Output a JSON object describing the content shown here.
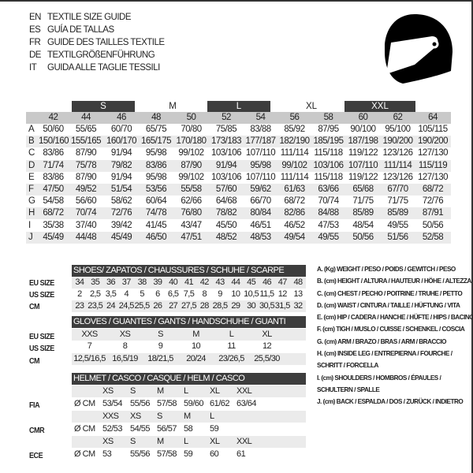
{
  "titles": [
    {
      "code": "EN",
      "text": "TEXTILE SIZE GUIDE"
    },
    {
      "code": "ES",
      "text": "GUÍA DE TALLAS"
    },
    {
      "code": "FR",
      "text": "GUIDE DES TAILLES TEXTILE"
    },
    {
      "code": "DE",
      "text": "TEXTILGRÖßENFÜHRUNG"
    },
    {
      "code": "IT",
      "text": "GUIDA ALLE TAGLIE TESSILI"
    }
  ],
  "textile": {
    "groups": [
      "S",
      "M",
      "L",
      "XL",
      "XXL"
    ],
    "sizes": [
      "42",
      "44",
      "46",
      "48",
      "50",
      "52",
      "54",
      "56",
      "58",
      "60",
      "62",
      "64"
    ],
    "rows": [
      {
        "letter": "A",
        "values": [
          "50/60",
          "55/65",
          "60/70",
          "65/75",
          "70/80",
          "75/85",
          "83/88",
          "85/92",
          "87/95",
          "90/100",
          "95/100",
          "105/115"
        ]
      },
      {
        "letter": "B",
        "values": [
          "150/160",
          "155/165",
          "160/170",
          "165/175",
          "170/180",
          "173/183",
          "177/187",
          "182/190",
          "185/195",
          "187/198",
          "190/200",
          "190/200"
        ]
      },
      {
        "letter": "C",
        "values": [
          "83/86",
          "87/90",
          "91/94",
          "95/98",
          "99/102",
          "103/106",
          "107/110",
          "111/114",
          "115/118",
          "119/122",
          "123/126",
          "127/130"
        ]
      },
      {
        "letter": "D",
        "values": [
          "71/74",
          "75/78",
          "79/82",
          "83/86",
          "87/90",
          "91/94",
          "95/98",
          "99/102",
          "103/106",
          "107/110",
          "111/114",
          "115/119"
        ]
      },
      {
        "letter": "E",
        "values": [
          "83/86",
          "87/90",
          "91/94",
          "95/98",
          "99/102",
          "103/106",
          "107/110",
          "111/114",
          "115/118",
          "119/122",
          "123/126",
          "127/130"
        ]
      },
      {
        "letter": "F",
        "values": [
          "47/50",
          "49/52",
          "51/54",
          "53/56",
          "55/58",
          "57/60",
          "59/62",
          "61/63",
          "63/66",
          "65/68",
          "67/70",
          "68/72"
        ]
      },
      {
        "letter": "G",
        "values": [
          "54/58",
          "56/60",
          "58/62",
          "60/64",
          "62/66",
          "64/68",
          "66/70",
          "68/72",
          "70/74",
          "71/75",
          "71/75",
          "72/76"
        ]
      },
      {
        "letter": "H",
        "values": [
          "68/72",
          "70/74",
          "72/76",
          "74/78",
          "76/80",
          "78/82",
          "80/84",
          "82/86",
          "84/88",
          "85/89",
          "85/89",
          "87/91"
        ]
      },
      {
        "letter": "I",
        "values": [
          "35/38",
          "37/40",
          "39/42",
          "41/45",
          "43/47",
          "45/50",
          "46/51",
          "46/52",
          "47/53",
          "48/54",
          "49/55",
          "50/56"
        ]
      },
      {
        "letter": "J",
        "values": [
          "45/49",
          "44/48",
          "45/49",
          "46/50",
          "47/51",
          "48/52",
          "48/53",
          "49/54",
          "49/55",
          "50/56",
          "51/56",
          "52/58"
        ]
      }
    ]
  },
  "shoes": {
    "title": "SHOES/ ZAPATOS / CHAUSSURES / SCHUHE / SCARPE",
    "rows": [
      {
        "label": "EU SIZE",
        "values": [
          "34",
          "35",
          "36",
          "37",
          "38",
          "39",
          "40",
          "41",
          "42",
          "43",
          "44",
          "45",
          "46",
          "47",
          "48"
        ]
      },
      {
        "label": "US SIZE",
        "values": [
          "2",
          "2,5",
          "3,5",
          "4",
          "5",
          "6",
          "6,5",
          "7,5",
          "8",
          "9",
          "10",
          "10,5",
          "11,5",
          "12",
          "13"
        ]
      },
      {
        "label": "CM",
        "values": [
          "23",
          "23,5",
          "24",
          "24,5",
          "25,5",
          "26",
          "27",
          "27,5",
          "28",
          "28,5",
          "29",
          "30",
          "30,5",
          "31,5",
          "32"
        ]
      }
    ]
  },
  "gloves": {
    "title": "GLOVES / GUANTES / GANTS / HANDSCHUHE / GUANTI",
    "rows": [
      {
        "label": "EU SIZE",
        "values": [
          "XXS",
          "XS",
          "S",
          "M",
          "L",
          "XL"
        ]
      },
      {
        "label": "US SIZE",
        "values": [
          "7",
          "8",
          "9",
          "10",
          "11",
          "12"
        ]
      },
      {
        "label": "CM",
        "values": [
          "12,5/16,5",
          "16,5/19",
          "18/21,5",
          "20/24",
          "23/26,5",
          "25,5/30"
        ]
      }
    ]
  },
  "helmet": {
    "title": "HELMET / CASCO / CASQUE / HELM / CASCO",
    "standards": [
      {
        "label": "FIA",
        "unit": "Ø CM",
        "sizes": [
          "XS",
          "S",
          "M",
          "L",
          "XL",
          "XXL"
        ],
        "values": [
          "53/54",
          "55/56",
          "57/58",
          "59/60",
          "61/62",
          "63/64"
        ]
      },
      {
        "label": "CMR",
        "unit": "Ø CM",
        "sizes": [
          "XXS",
          "XS",
          "S",
          "M",
          "L"
        ],
        "values": [
          "52/53",
          "54/55",
          "56/57",
          "58",
          "59"
        ]
      },
      {
        "label": "ECE",
        "unit": "Ø CM",
        "sizes": [
          "XS",
          "S",
          "M",
          "L",
          "XL",
          "XXL"
        ],
        "values": [
          "53",
          "55/56",
          "57/58",
          "59",
          "60",
          "61"
        ]
      }
    ]
  },
  "legend": [
    "A. (Kg) WEIGHT / PESO / POIDS / GEWITCH / PESO",
    "B. (cm) HEIGHT / ALTURA / HAUTEUR / HÖHE / ALTEZZA",
    "C. (cm) CHEST / PECHO / POITRINE / TRUHE / PETTO",
    "D. (cm) WAIST / CINTURA / TAILLE / HÜFTUNG / VITA",
    "E. (cm) HIP / CADERA / HANCHE / HÜFTE / HIPS /  BACINO",
    "F.  (cm) TIGH / MUSLO / CUISSE / SCHENKEL / COSCIA",
    "G. (cm) ARM  / BRAZO / BRAS / ARM / BRACCIO",
    "H. (cm) INSIDE LEG / ENTREPIERNA / FOURCHE /",
    "SCHRITT / FORCELLA",
    "I.  (cm) SHOULDERS / HOMBROS / ÉPAULES /",
    "SCHULTERN / SPALLE",
    "J. (cm) BACK / ESPALDA / DOS / ZURÜCK / INDIETRO"
  ],
  "colors": {
    "bar": "#3d3d3d",
    "header_row": "#c9c9c9",
    "stripe": "#ebebeb"
  },
  "logo_icon": "helmet-icon"
}
